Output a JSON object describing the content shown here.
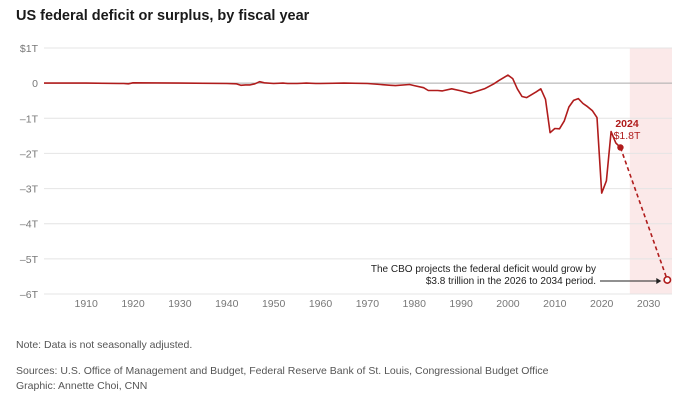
{
  "title": "US federal deficit or surplus, by fiscal year",
  "chart_data": {
    "type": "line",
    "title": "US federal deficit or surplus, by fiscal year",
    "xlabel": "",
    "ylabel": "",
    "xlim": [
      1901,
      2035
    ],
    "ylim": [
      -6,
      1
    ],
    "x_ticks": [
      1910,
      1920,
      1930,
      1940,
      1950,
      1960,
      1970,
      1980,
      1990,
      2000,
      2010,
      2020,
      2030
    ],
    "x_tick_labels": [
      "1910",
      "1920",
      "1930",
      "1940",
      "1950",
      "1960",
      "1970",
      "1980",
      "1990",
      "2000",
      "2010",
      "2020",
      "2030"
    ],
    "y_ticks": [
      1,
      0,
      -1,
      -2,
      -3,
      -4,
      -5,
      -6
    ],
    "y_tick_labels": [
      "$1T",
      "0",
      "–1T",
      "–2T",
      "–3T",
      "–4T",
      "–5T",
      "–6T"
    ],
    "projection_shading": [
      2026,
      2034
    ],
    "series": [
      {
        "name": "Actual",
        "color": "#b01c1c",
        "x": [
          1901,
          1910,
          1917,
          1918,
          1919,
          1920,
          1930,
          1940,
          1942,
          1943,
          1944,
          1945,
          1946,
          1947,
          1948,
          1950,
          1952,
          1953,
          1955,
          1957,
          1959,
          1960,
          1965,
          1970,
          1975,
          1976,
          1979,
          1980,
          1982,
          1983,
          1985,
          1986,
          1988,
          1990,
          1992,
          1995,
          1997,
          1998,
          2000,
          2001,
          2002,
          2003,
          2004,
          2006,
          2007,
          2008,
          2009,
          2010,
          2011,
          2012,
          2013,
          2014,
          2015,
          2016,
          2017,
          2018,
          2019,
          2020,
          2021,
          2022,
          2023,
          2024
        ],
        "values": [
          0,
          0,
          -0.01,
          -0.01,
          -0.02,
          0.01,
          0.0,
          -0.01,
          -0.02,
          -0.06,
          -0.05,
          -0.05,
          -0.02,
          0.04,
          0.01,
          -0.01,
          0.0,
          -0.01,
          -0.01,
          0.0,
          -0.01,
          -0.01,
          0.0,
          -0.01,
          -0.06,
          -0.07,
          -0.04,
          -0.07,
          -0.13,
          -0.21,
          -0.21,
          -0.22,
          -0.16,
          -0.22,
          -0.29,
          -0.16,
          -0.02,
          0.07,
          0.23,
          0.13,
          -0.16,
          -0.38,
          -0.41,
          -0.25,
          -0.16,
          -0.46,
          -1.41,
          -1.29,
          -1.3,
          -1.08,
          -0.68,
          -0.49,
          -0.44,
          -0.58,
          -0.67,
          -0.78,
          -0.98,
          -3.13,
          -2.78,
          -1.38,
          -1.7,
          -1.83
        ]
      },
      {
        "name": "Projected",
        "style": "dashed",
        "color": "#b01c1c",
        "x": [
          2024,
          2034
        ],
        "values": [
          -1.83,
          -5.6
        ]
      }
    ],
    "annotations": [
      {
        "year_label": "2024",
        "value_label": "$1.8T",
        "x": 2024,
        "y": -1.83
      },
      {
        "lines": [
          "The CBO projects the federal deficit would grow by",
          "$3.8 trillion in the 2026 to 2034 period."
        ],
        "x": 2034,
        "y": -5.6
      }
    ]
  },
  "footer": {
    "note": "Note: Data is not seasonally adjusted.",
    "sources": "Sources: U.S. Office of Management and Budget, Federal Reserve Bank of St. Louis, Congressional Budget Office",
    "graphic": "Graphic: Annette Choi, CNN"
  }
}
